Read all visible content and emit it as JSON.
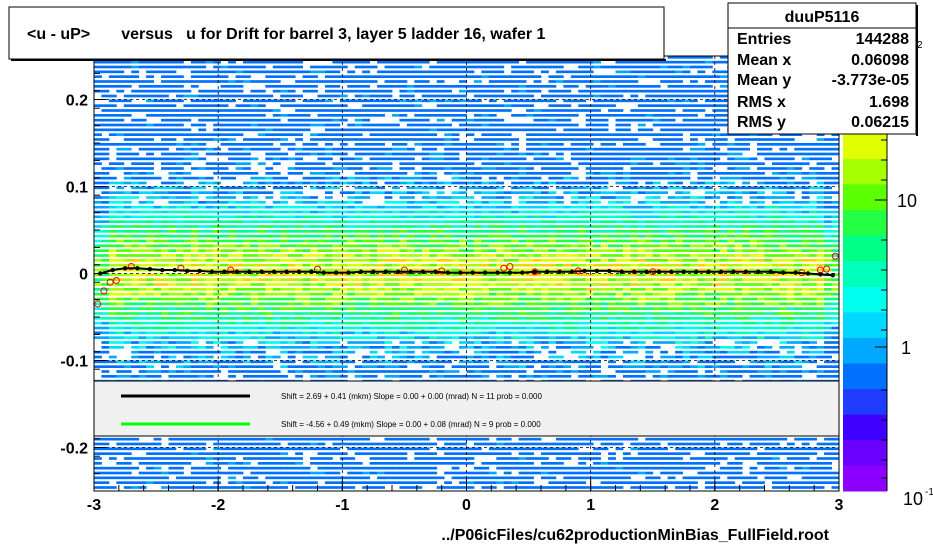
{
  "chart_data": {
    "type": "heatmap",
    "title": "<u - uP>       versus   u for Drift for barrel 3, layer 5 ladder 16, wafer 1",
    "xlabel": "../P06icFiles/cu62productionMinBias_FullField.root",
    "ylabel": "",
    "xlim": [
      -3,
      3
    ],
    "ylim": [
      -0.25,
      0.25
    ],
    "x_ticks": [
      "-3",
      "-2",
      "-1",
      "0",
      "1",
      "2",
      "3"
    ],
    "y_ticks": [
      "-0.2",
      "-0.1",
      "0",
      "0.1",
      "0.2"
    ],
    "grid": true,
    "stats": {
      "name": "duuP5116",
      "rows": [
        {
          "label": "Entries",
          "value": "144288"
        },
        {
          "label": "Mean x",
          "value": "0.06098"
        },
        {
          "label": "Mean y",
          "value": "-3.773e-05"
        },
        {
          "label": "RMS x",
          "value": "1.698"
        },
        {
          "label": "RMS y",
          "value": "0.06215"
        }
      ]
    },
    "colorbar": {
      "scale": "log",
      "tick_labels": [
        "10",
        "1"
      ],
      "corner_label": "10",
      "corner_exponent": "-1",
      "top_exponent": "2"
    },
    "legend": {
      "placement": "lower-center",
      "entries": [
        {
          "text": "Shift =    2.69 + 0.41 (mkm) Slope =    0.00 + 0.00 (mrad)  N = 11 prob = 0.000",
          "color": "#000000"
        },
        {
          "text": "Shift =    -4.56 + 0.49 (mkm) Slope =    0.00 + 0.08 (mrad)  N = 9 prob = 0.000",
          "color": "#00ff00"
        }
      ]
    },
    "profile_black": {
      "x": [
        -2.95,
        -2.85,
        -2.75,
        -2.65,
        -2.55,
        -2.45,
        -2.35,
        -2.25,
        -2.15,
        -2.05,
        -1.95,
        -1.85,
        -1.75,
        -1.65,
        -1.55,
        -1.45,
        -1.35,
        -1.25,
        -1.15,
        -1.05,
        -0.95,
        -0.85,
        -0.75,
        -0.65,
        -0.55,
        -0.45,
        -0.35,
        -0.25,
        -0.15,
        -0.05,
        0.05,
        0.15,
        0.25,
        0.35,
        0.45,
        0.55,
        0.65,
        0.75,
        0.85,
        0.95,
        1.05,
        1.15,
        1.25,
        1.35,
        1.45,
        1.55,
        1.65,
        1.75,
        1.85,
        1.95,
        2.05,
        2.15,
        2.25,
        2.35,
        2.45,
        2.55,
        2.65,
        2.75,
        2.85,
        2.95
      ],
      "y": [
        0.0,
        0.004,
        0.006,
        0.006,
        0.005,
        0.004,
        0.004,
        0.003,
        0.003,
        0.002,
        0.002,
        0.002,
        0.002,
        0.002,
        0.002,
        0.002,
        0.002,
        0.002,
        0.001,
        0.001,
        0.001,
        0.002,
        0.002,
        0.002,
        0.002,
        0.002,
        0.002,
        0.002,
        0.001,
        0.001,
        0.001,
        0.001,
        0.001,
        0.001,
        0.001,
        0.002,
        0.002,
        0.002,
        0.002,
        0.003,
        0.003,
        0.003,
        0.002,
        0.002,
        0.002,
        0.002,
        0.002,
        0.002,
        0.002,
        0.002,
        0.002,
        0.002,
        0.002,
        0.002,
        0.002,
        0.001,
        0.001,
        0.0,
        -0.001,
        -0.002
      ]
    },
    "profile_red": {
      "x": [
        -2.97,
        -2.92,
        -2.87,
        -2.82,
        -2.7,
        -2.3,
        -1.9,
        -1.2,
        -0.5,
        -0.2,
        0.3,
        0.35,
        0.55,
        0.9,
        1.5,
        2.7,
        2.85,
        2.9,
        2.97
      ],
      "y": [
        -0.035,
        -0.02,
        -0.01,
        -0.008,
        0.008,
        0.006,
        0.004,
        0.005,
        0.004,
        0.003,
        0.006,
        0.008,
        0.002,
        0.003,
        0.002,
        0.001,
        0.004,
        0.005,
        0.02
      ]
    }
  }
}
